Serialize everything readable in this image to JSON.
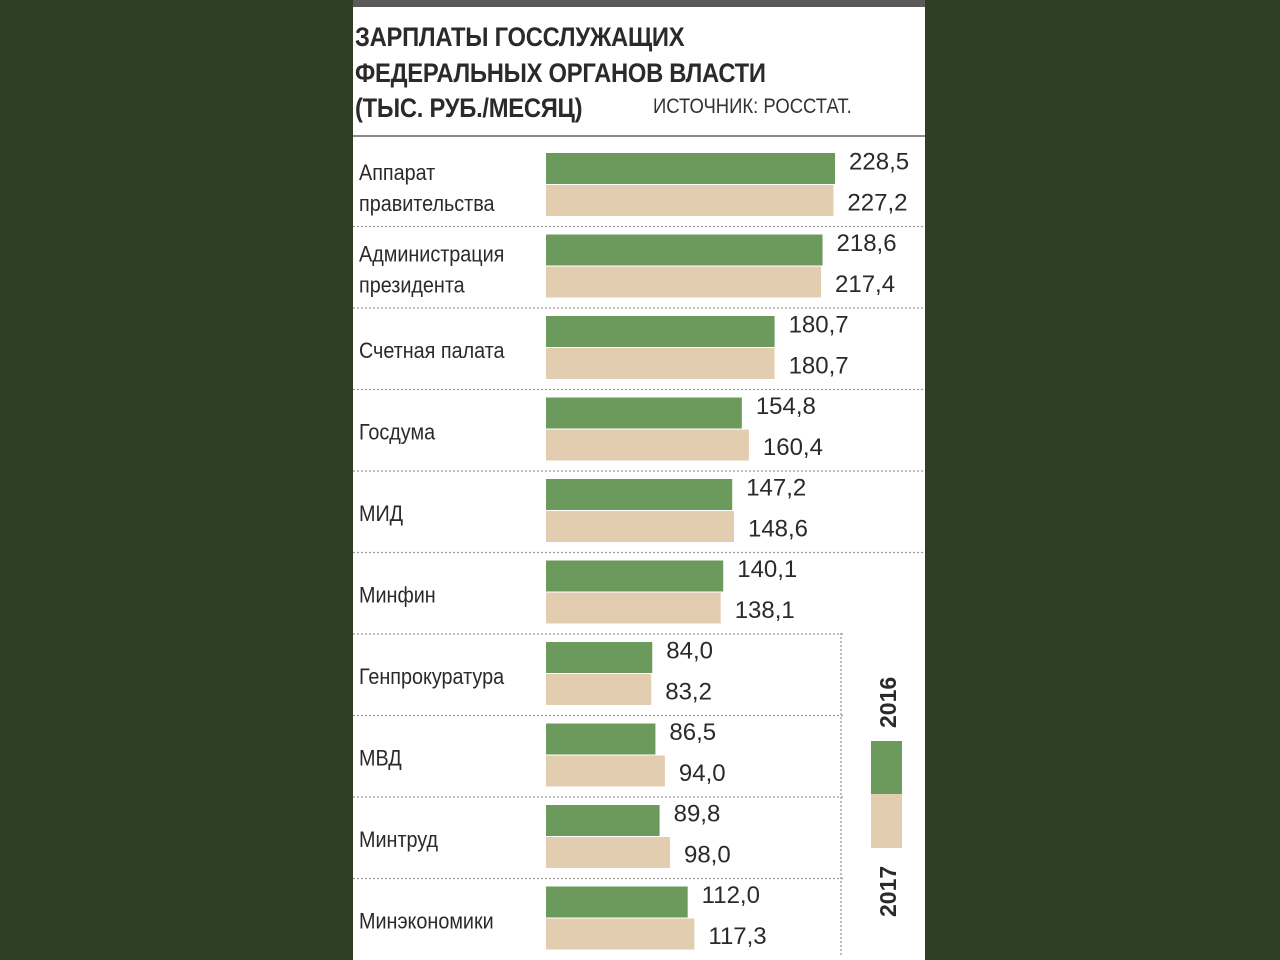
{
  "header": {
    "title_lines": [
      "ЗАРПЛАТЫ ГОССЛУЖАЩИХ",
      "ФЕДЕРАЛЬНЫХ ОРГАНОВ ВЛАСТИ",
      "(ТЫС. РУБ./МЕСЯЦ)"
    ],
    "source": "ИСТОЧНИК: РОССТАТ."
  },
  "colors": {
    "series_2016": "#6b9a5c",
    "series_2017": "#e3cdb0",
    "separator": "#9a9a9a"
  },
  "chart_data": {
    "type": "bar",
    "orientation": "horizontal",
    "title": "ЗАРПЛАТЫ ГОССЛУЖАЩИХ ФЕДЕРАЛЬНЫХ ОРГАНОВ ВЛАСТИ (ТЫС. РУБ./МЕСЯЦ)",
    "categories": [
      [
        "Аппарат",
        "правительства"
      ],
      [
        "Администрация",
        "президента"
      ],
      [
        "Счетная палата"
      ],
      [
        "Госдума"
      ],
      [
        "МИД"
      ],
      [
        "Минфин"
      ],
      [
        "Генпрокуратура"
      ],
      [
        "МВД"
      ],
      [
        "Минтруд"
      ],
      [
        "Минэкономики"
      ]
    ],
    "series": [
      {
        "name": "2016",
        "values": [
          228.5,
          218.6,
          180.7,
          154.8,
          147.2,
          140.1,
          84.0,
          86.5,
          89.8,
          112.0
        ],
        "labels": [
          "228,5",
          "218,6",
          "180,7",
          "154,8",
          "147,2",
          "140,1",
          "84,0",
          "86,5",
          "89,8",
          "112,0"
        ]
      },
      {
        "name": "2017",
        "values": [
          227.2,
          217.4,
          180.7,
          160.4,
          148.6,
          138.1,
          83.2,
          94.0,
          98.0,
          117.3
        ],
        "labels": [
          "227,2",
          "217,4",
          "180,7",
          "160,4",
          "148,6",
          "138,1",
          "83,2",
          "94,0",
          "98,0",
          "117,3"
        ]
      }
    ],
    "legend": {
      "position": "bottom-right",
      "entries": [
        "2016",
        "2017"
      ]
    },
    "grid": false
  }
}
